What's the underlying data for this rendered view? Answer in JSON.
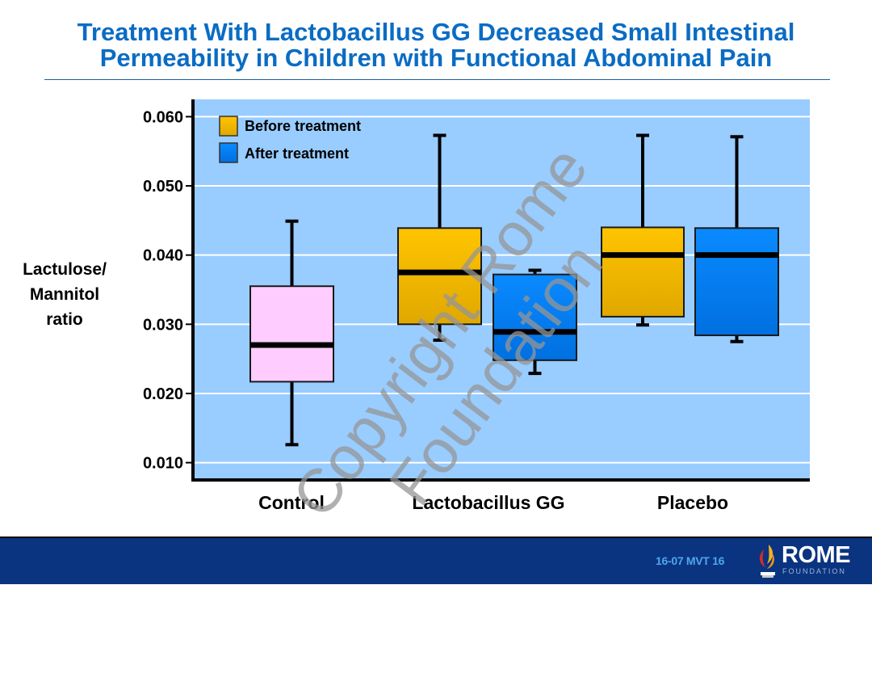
{
  "slide": {
    "title_line1": "Treatment With Lactobacillus GG Decreased Small Intestinal",
    "title_line2": "Permeability in Children with Functional Abdominal Pain",
    "watermark": "Copyright Rome Foundation",
    "footer_code": "16-07  MVT 16",
    "logo_word": "ROME",
    "logo_sub": "FOUNDATION",
    "logo_icon": "flame-icon"
  },
  "colors": {
    "title": "#0a6cc4",
    "plot_bg": "#99ccff",
    "control": "#ffccff",
    "before": "#f5b800",
    "after": "#0a7ef0",
    "footer_bg": "#0a3480"
  },
  "chart_data": {
    "type": "boxplot",
    "title": "",
    "xlabel": "",
    "ylabel": "Lactulose/ Mannitol ratio",
    "ylabel_lines": [
      "Lactulose/",
      "Mannitol",
      "ratio"
    ],
    "ylim": [
      0.0075,
      0.0625
    ],
    "yticks": [
      0.01,
      0.02,
      0.03,
      0.04,
      0.05,
      0.06
    ],
    "ytick_labels": [
      "0.010",
      "0.020",
      "0.030",
      "0.040",
      "0.050",
      "0.060"
    ],
    "grid": true,
    "legend_position": "top-left",
    "legend": [
      {
        "label": "Before treatment",
        "series": "before"
      },
      {
        "label": "After treatment",
        "series": "after"
      }
    ],
    "categories": [
      "Control",
      "Lactobacillus GG",
      "Placebo"
    ],
    "boxes": [
      {
        "category": "Control",
        "series": "control",
        "min": 0.0126,
        "q1": 0.0217,
        "median": 0.027,
        "q3": 0.0355,
        "max": 0.0449
      },
      {
        "category": "Lactobacillus GG",
        "series": "before",
        "min": 0.0277,
        "q1": 0.03,
        "median": 0.0375,
        "q3": 0.0439,
        "max": 0.0573
      },
      {
        "category": "Lactobacillus GG",
        "series": "after",
        "min": 0.0229,
        "q1": 0.0248,
        "median": 0.0289,
        "q3": 0.0372,
        "max": 0.0378
      },
      {
        "category": "Placebo",
        "series": "before",
        "min": 0.0299,
        "q1": 0.0311,
        "median": 0.04,
        "q3": 0.044,
        "max": 0.0573
      },
      {
        "category": "Placebo",
        "series": "after",
        "min": 0.0275,
        "q1": 0.0284,
        "median": 0.04,
        "q3": 0.0439,
        "max": 0.0571
      }
    ]
  }
}
